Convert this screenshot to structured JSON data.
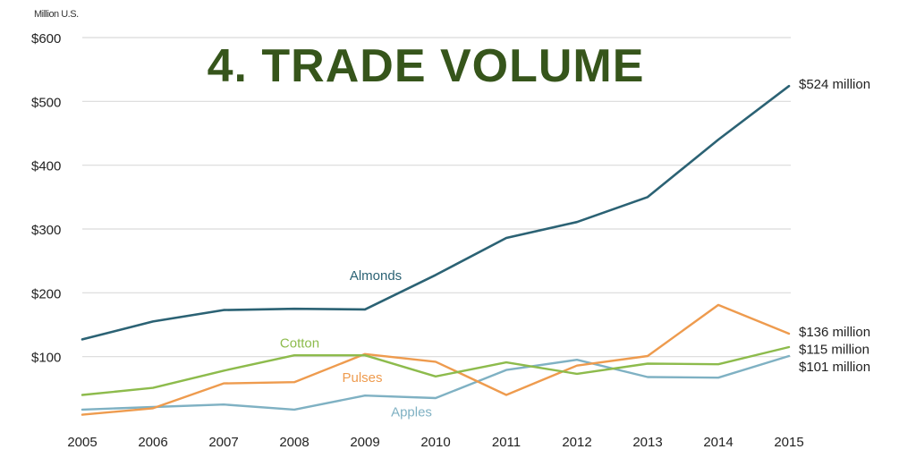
{
  "chart_data": {
    "type": "line",
    "title": "4. TRADE VOLUME",
    "ylabel": "Million U.S.",
    "xlabel": "",
    "categories": [
      "2005",
      "2006",
      "2007",
      "2008",
      "2009",
      "2010",
      "2011",
      "2012",
      "2013",
      "2014",
      "2015"
    ],
    "ylim": [
      0,
      600
    ],
    "yticks": [
      100,
      200,
      300,
      400,
      500,
      600
    ],
    "ytick_labels": [
      "$100",
      "$200",
      "$300",
      "$400",
      "$500",
      "$600"
    ],
    "grid": true,
    "series": [
      {
        "name": "Almonds",
        "color": "#2b6274",
        "values": [
          127,
          155,
          173,
          175,
          174,
          228,
          286,
          311,
          350,
          440,
          524
        ]
      },
      {
        "name": "Cotton",
        "color": "#8dbb4c",
        "values": [
          40,
          51,
          78,
          102,
          102,
          69,
          91,
          73,
          89,
          88,
          115
        ]
      },
      {
        "name": "Pulses",
        "color": "#ee9b4e",
        "values": [
          9,
          19,
          58,
          60,
          104,
          92,
          40,
          86,
          101,
          181,
          136
        ]
      },
      {
        "name": "Apples",
        "color": "#7fb1c3",
        "values": [
          17,
          21,
          25,
          17,
          39,
          35,
          79,
          95,
          68,
          67,
          101
        ]
      }
    ],
    "end_labels": [
      "$524 million",
      "$136 million",
      "$115 million",
      "$101 million"
    ]
  }
}
